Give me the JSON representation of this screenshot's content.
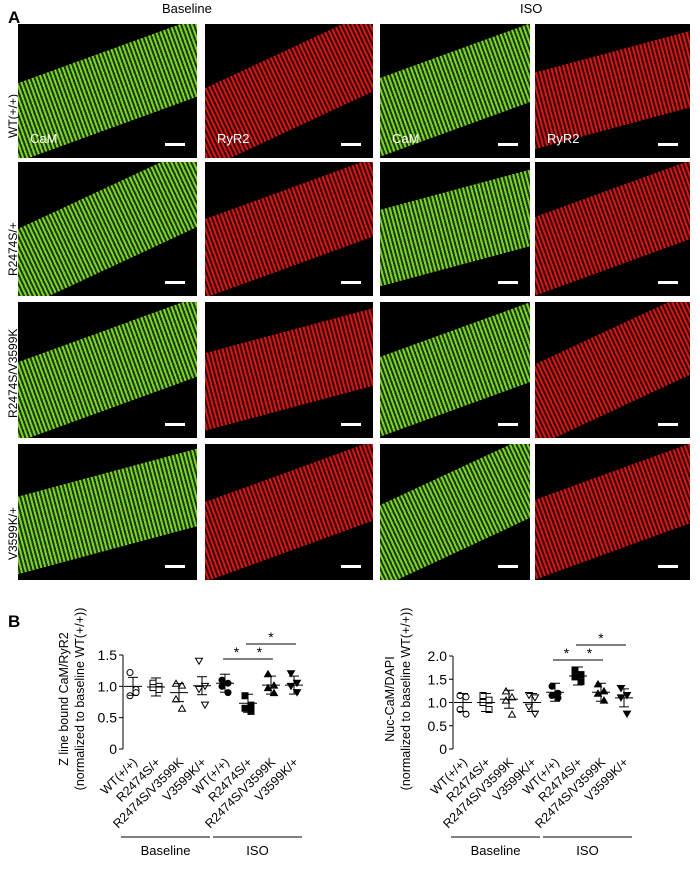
{
  "panel_a": {
    "letter": "A",
    "baseline": "Baseline",
    "iso": "ISO",
    "rows": [
      "WT(+/+)",
      "R2474S/+",
      "R2474S/V3599K",
      "V3599K/+"
    ],
    "stain_cam": "CaM",
    "stain_ryr2": "RyR2",
    "colors": {
      "cam": "#7cd22a",
      "ryr2": "#d01818"
    }
  },
  "panel_b": {
    "letter": "B"
  },
  "chart_data": [
    {
      "type": "scatter",
      "ylabel": "Z line bound CaM/RyR2\n(normalized to baseline WT(+/+))",
      "ylabel_lines": [
        "Z line bound CaM/RyR2",
        "(normalized to baseline WT(+/+))"
      ],
      "categories": [
        "WT(+/+)",
        "R2474S/+",
        "R2474S/V3599K",
        "V3599K/+",
        "WT(+/+)",
        "R2474S/+",
        "R2474S/V3599K",
        "V3599K/+"
      ],
      "groups": [
        "Baseline",
        "ISO"
      ],
      "yticks": [
        "0",
        "0.5",
        "1.0",
        "1.5"
      ],
      "ylim": [
        0,
        1.5
      ],
      "markers": [
        "open-circle",
        "open-square",
        "open-triangle",
        "open-down-triangle",
        "circle",
        "square",
        "triangle",
        "down-triangle"
      ],
      "means": [
        1.0,
        0.99,
        0.9,
        1.01,
        1.05,
        0.73,
        1.02,
        1.02
      ],
      "points": [
        [
          1.22,
          0.95,
          0.85,
          0.9
        ],
        [
          1.05,
          1.0,
          0.98,
          0.95
        ],
        [
          1.05,
          1.02,
          0.8,
          0.65
        ],
        [
          1.4,
          1.0,
          0.95,
          0.7
        ],
        [
          1.1,
          1.05,
          1.0,
          0.9
        ],
        [
          0.85,
          0.7,
          0.65,
          0.6
        ],
        [
          1.2,
          1.02,
          0.98,
          0.9
        ],
        [
          1.2,
          1.05,
          1.0,
          0.9
        ]
      ],
      "significance": [
        {
          "from": 4,
          "to": 5,
          "label": "*"
        },
        {
          "from": 5,
          "to": 6,
          "label": "*"
        },
        {
          "from": 5,
          "to": 7,
          "label": "*"
        }
      ]
    },
    {
      "type": "scatter",
      "ylabel_lines": [
        "Nuc-CaM/DAPI",
        "(normalized to baseline WT(+/+))"
      ],
      "categories": [
        "WT(+/+)",
        "R2474S/+",
        "R2474S/V3599K",
        "V3599K/+",
        "WT(+/+)",
        "R2474S/+",
        "R2474S/V3599K",
        "V3599K/+"
      ],
      "groups": [
        "Baseline",
        "ISO"
      ],
      "yticks": [
        "0",
        "0.5",
        "1.0",
        "1.5",
        "2.0"
      ],
      "ylim": [
        0,
        2.0
      ],
      "markers": [
        "open-circle",
        "open-square",
        "open-triangle",
        "open-down-triangle",
        "circle",
        "square",
        "triangle",
        "down-triangle"
      ],
      "means": [
        1.0,
        1.0,
        1.07,
        1.0,
        1.22,
        1.57,
        1.22,
        1.1
      ],
      "points": [
        [
          1.15,
          1.12,
          0.85,
          0.75
        ],
        [
          1.15,
          1.05,
          1.0,
          0.85
        ],
        [
          1.25,
          1.12,
          1.05,
          0.75
        ],
        [
          1.15,
          1.1,
          0.9,
          0.75
        ],
        [
          1.35,
          1.2,
          1.15,
          1.1
        ],
        [
          1.7,
          1.6,
          1.55,
          1.45
        ],
        [
          1.4,
          1.25,
          1.2,
          1.05
        ],
        [
          1.3,
          1.15,
          1.1,
          0.75
        ]
      ],
      "significance": [
        {
          "from": 4,
          "to": 5,
          "label": "*"
        },
        {
          "from": 5,
          "to": 6,
          "label": "*"
        },
        {
          "from": 5,
          "to": 7,
          "label": "*"
        }
      ]
    }
  ]
}
